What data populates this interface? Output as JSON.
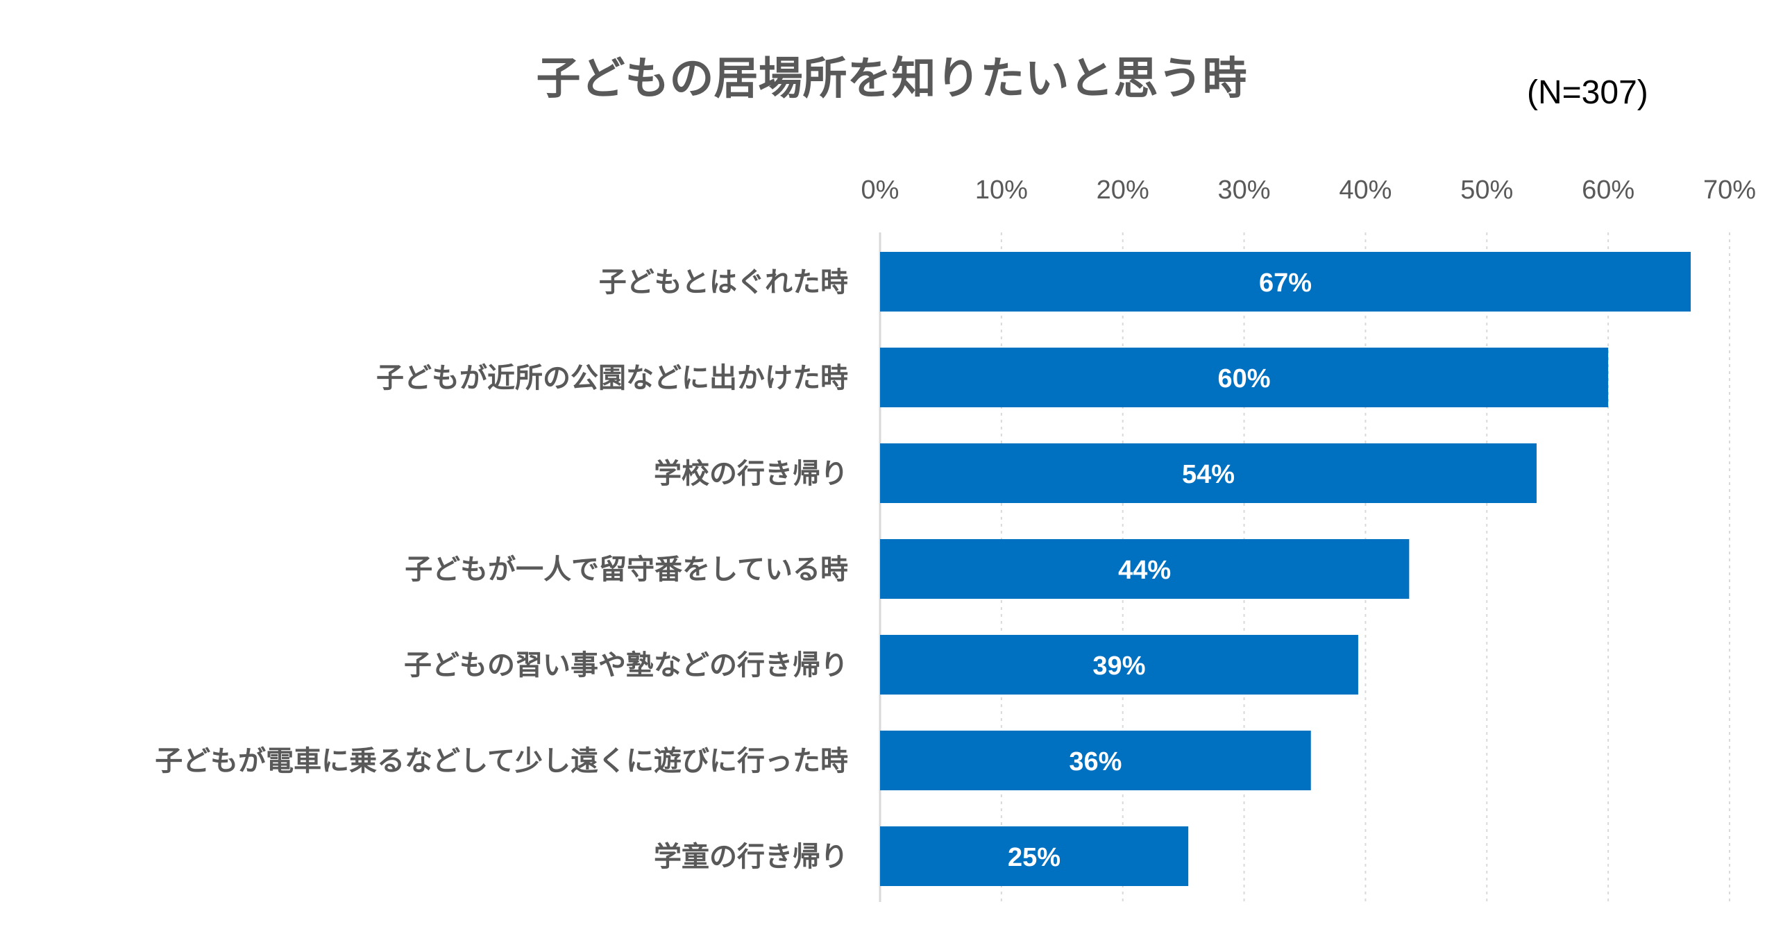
{
  "chart_data": {
    "type": "bar",
    "orientation": "horizontal",
    "title": "子どもの居場所を知りたいと思う時",
    "note": "(N=307)",
    "xlim": [
      0,
      70
    ],
    "ticks": [
      0,
      10,
      20,
      30,
      40,
      50,
      60,
      70
    ],
    "tick_labels": [
      "0%",
      "10%",
      "20%",
      "30%",
      "40%",
      "50%",
      "60%",
      "70%"
    ],
    "axis_position": "top",
    "grid": true,
    "bar_color": "#0070C0",
    "categories": [
      "子どもとはぐれた時",
      "子どもが近所の公園などに出かけた時",
      "学校の行き帰り",
      "子どもが一人で留守番をしている時",
      "子どもの習い事や塾などの行き帰り",
      "子どもが電車に乗るなどして少し遠くに遊びに行った時",
      "学童の行き帰り"
    ],
    "values": [
      66.8,
      60.0,
      54.1,
      43.6,
      39.4,
      35.5,
      25.4
    ],
    "value_labels": [
      "67%",
      "60%",
      "54%",
      "44%",
      "39%",
      "36%",
      "25%"
    ]
  }
}
